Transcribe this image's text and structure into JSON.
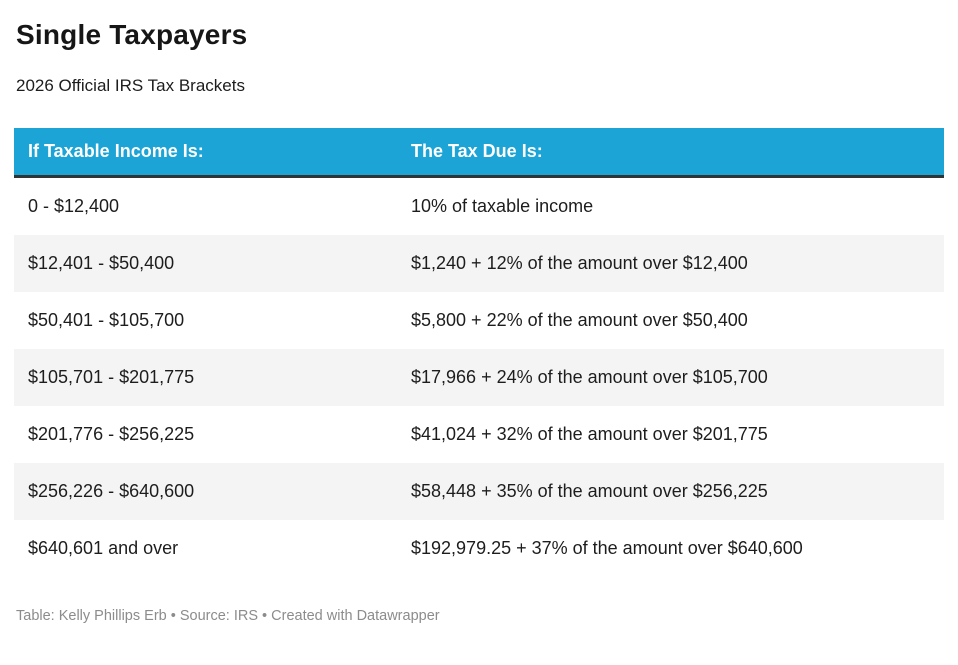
{
  "header": {
    "title": "Single Taxpayers",
    "subtitle": "2026 Official IRS Tax Brackets"
  },
  "chart_data": {
    "type": "table",
    "title": "Single Taxpayers",
    "subtitle": "2026 Official IRS Tax Brackets",
    "columns": [
      "If Taxable Income Is:",
      "The Tax Due Is:"
    ],
    "rows": [
      [
        "0 - $12,400",
        "10% of taxable income"
      ],
      [
        "$12,401 - $50,400",
        "$1,240 + 12% of the amount over $12,400"
      ],
      [
        "$50,401 - $105,700",
        "$5,800 + 22% of the amount over $50,400"
      ],
      [
        "$105,701 - $201,775",
        "$17,966 + 24% of the amount over $105,700"
      ],
      [
        "$201,776 - $256,225",
        "$41,024 + 32% of the amount over $201,775"
      ],
      [
        "$256,226 - $640,600",
        "$58,448 + 35% of the amount over $256,225"
      ],
      [
        "$640,601 and over",
        "$192,979.25 + 37% of the amount over $640,600"
      ]
    ],
    "layout": {
      "header_position": "top",
      "zebra_striping": true,
      "grid": false
    }
  },
  "footer": {
    "attribution": "Table: Kelly Phillips Erb • Source: IRS • Created with Datawrapper"
  },
  "colors": {
    "header_bg": "#1CA4D6",
    "header_text": "#FFFFFF",
    "header_border": "#333333",
    "stripe_bg": "#F4F4F4",
    "body_text": "#1D1D1D",
    "title_text": "#161616",
    "footer_text": "#8C8C8C",
    "page_bg": "#FFFFFF"
  }
}
